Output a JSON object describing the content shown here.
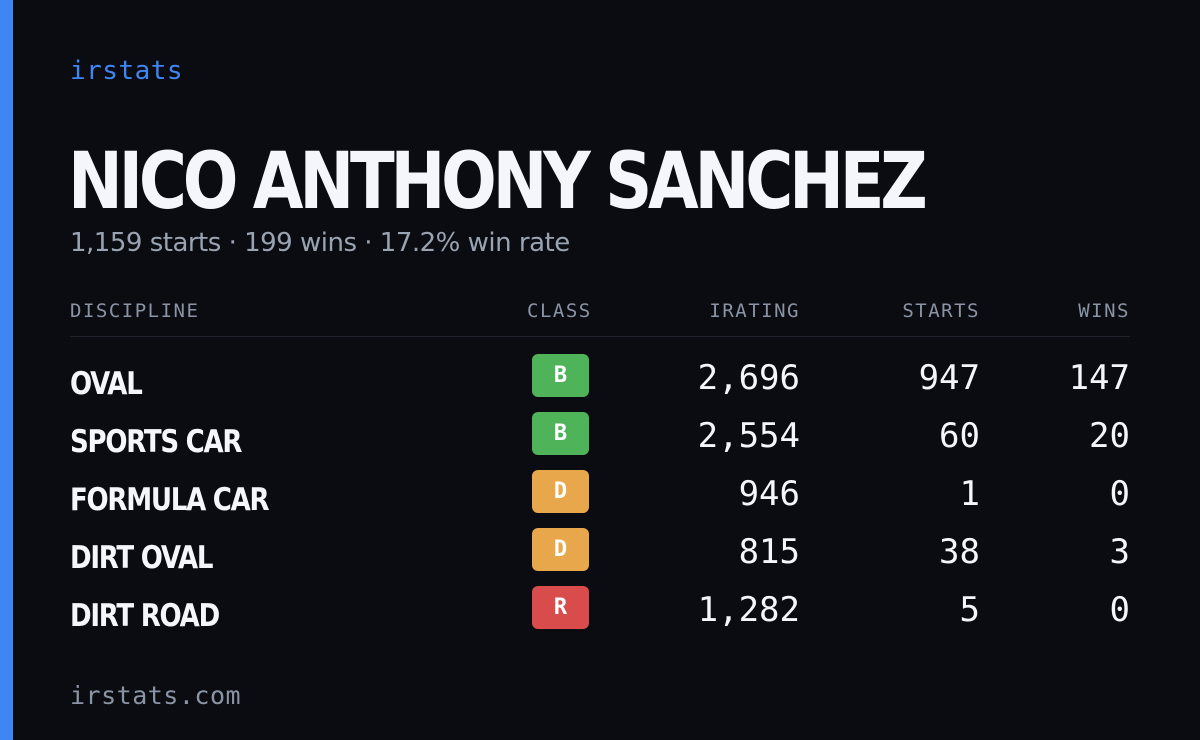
{
  "brand": "irstats",
  "driver": {
    "name": "NICO ANTHONY SANCHEZ",
    "summary": "1,159 starts · 199 wins · 17.2% win rate"
  },
  "table": {
    "headers": {
      "discipline": "DISCIPLINE",
      "class": "CLASS",
      "irating": "IRATING",
      "starts": "STARTS",
      "wins": "WINS"
    },
    "rows": [
      {
        "discipline": "OVAL",
        "class": "B",
        "class_color": "#4fb35a",
        "irating": "2,696",
        "starts": "947",
        "wins": "147"
      },
      {
        "discipline": "SPORTS CAR",
        "class": "B",
        "class_color": "#4fb35a",
        "irating": "2,554",
        "starts": "60",
        "wins": "20"
      },
      {
        "discipline": "FORMULA CAR",
        "class": "D",
        "class_color": "#e9a74b",
        "irating": "946",
        "starts": "1",
        "wins": "0"
      },
      {
        "discipline": "DIRT OVAL",
        "class": "D",
        "class_color": "#e9a74b",
        "irating": "815",
        "starts": "38",
        "wins": "3"
      },
      {
        "discipline": "DIRT ROAD",
        "class": "R",
        "class_color": "#d94c4c",
        "irating": "1,282",
        "starts": "5",
        "wins": "0"
      }
    ]
  },
  "footer": "irstats.com",
  "colors": {
    "accent": "#3f86f4",
    "background": "#0a0c11"
  }
}
